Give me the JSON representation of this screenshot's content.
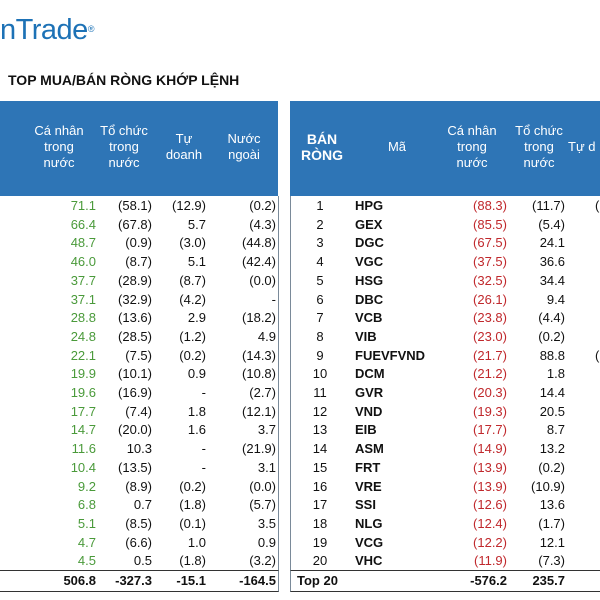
{
  "logo": {
    "text": "nTrade",
    "mark": "®"
  },
  "title": "TOP MUA/BÁN RÒNG KHỚP LỆNH",
  "left_headers": [
    "Cá nhân\ntrong\nnước",
    "Tổ chức\ntrong\nnước",
    "Tự\ndoanh",
    "Nước\nngoài"
  ],
  "right_headers": [
    "BÁN\nRÒNG",
    "Mã",
    "Cá nhân\ntrong\nnước",
    "Tổ chức\ntrong\nnước",
    "Tự d"
  ],
  "left_rows": [
    [
      "71.1",
      "(58.1)",
      "(12.9)",
      "(0.2)"
    ],
    [
      "66.4",
      "(67.8)",
      "5.7",
      "(4.3)"
    ],
    [
      "48.7",
      "(0.9)",
      "(3.0)",
      "(44.8)"
    ],
    [
      "46.0",
      "(8.7)",
      "5.1",
      "(42.4)"
    ],
    [
      "37.7",
      "(28.9)",
      "(8.7)",
      "(0.0)"
    ],
    [
      "37.1",
      "(32.9)",
      "(4.2)",
      "-"
    ],
    [
      "28.8",
      "(13.6)",
      "2.9",
      "(18.2)"
    ],
    [
      "24.8",
      "(28.5)",
      "(1.2)",
      "4.9"
    ],
    [
      "22.1",
      "(7.5)",
      "(0.2)",
      "(14.3)"
    ],
    [
      "19.9",
      "(10.1)",
      "0.9",
      "(10.8)"
    ],
    [
      "19.6",
      "(16.9)",
      "-",
      "(2.7)"
    ],
    [
      "17.7",
      "(7.4)",
      "1.8",
      "(12.1)"
    ],
    [
      "14.7",
      "(20.0)",
      "1.6",
      "3.7"
    ],
    [
      "11.6",
      "10.3",
      "-",
      "(21.9)"
    ],
    [
      "10.4",
      "(13.5)",
      "-",
      "3.1"
    ],
    [
      "9.2",
      "(8.9)",
      "(0.2)",
      "(0.0)"
    ],
    [
      "6.8",
      "0.7",
      "(1.8)",
      "(5.7)"
    ],
    [
      "5.1",
      "(8.5)",
      "(0.1)",
      "3.5"
    ],
    [
      "4.7",
      "(6.6)",
      "1.0",
      "0.9"
    ],
    [
      "4.5",
      "0.5",
      "(1.8)",
      "(3.2)"
    ]
  ],
  "left_total": [
    "506.8",
    "-327.3",
    "-15.1",
    "-164.5"
  ],
  "right_rows": [
    [
      "1",
      "HPG",
      "(88.3)",
      "(11.7)",
      "("
    ],
    [
      "2",
      "GEX",
      "(85.5)",
      "(5.4)",
      ""
    ],
    [
      "3",
      "DGC",
      "(67.5)",
      "24.1",
      ""
    ],
    [
      "4",
      "VGC",
      "(37.5)",
      "36.6",
      ""
    ],
    [
      "5",
      "HSG",
      "(32.5)",
      "34.4",
      ""
    ],
    [
      "6",
      "DBC",
      "(26.1)",
      "9.4",
      ""
    ],
    [
      "7",
      "VCB",
      "(23.8)",
      "(4.4)",
      ""
    ],
    [
      "8",
      "VIB",
      "(23.0)",
      "(0.2)",
      ""
    ],
    [
      "9",
      "FUEVFVND",
      "(21.7)",
      "88.8",
      "("
    ],
    [
      "10",
      "DCM",
      "(21.2)",
      "1.8",
      ""
    ],
    [
      "11",
      "GVR",
      "(20.3)",
      "14.4",
      ""
    ],
    [
      "12",
      "VND",
      "(19.3)",
      "20.5",
      ""
    ],
    [
      "13",
      "EIB",
      "(17.7)",
      "8.7",
      ""
    ],
    [
      "14",
      "ASM",
      "(14.9)",
      "13.2",
      ""
    ],
    [
      "15",
      "FRT",
      "(13.9)",
      "(0.2)",
      ""
    ],
    [
      "16",
      "VRE",
      "(13.9)",
      "(10.9)",
      ""
    ],
    [
      "17",
      "SSI",
      "(12.6)",
      "13.6",
      ""
    ],
    [
      "18",
      "NLG",
      "(12.4)",
      "(1.7)",
      ""
    ],
    [
      "19",
      "VCG",
      "(12.2)",
      "12.1",
      ""
    ],
    [
      "20",
      "VHC",
      "(11.9)",
      "(7.3)",
      ""
    ]
  ],
  "right_total": {
    "label": "Top 20",
    "values": [
      "-576.2",
      "235.7"
    ]
  },
  "colors": {
    "header": "#2e75b6",
    "buy": "#4a9a3a",
    "sell": "#c0282c",
    "logo": "#1d72b6"
  }
}
